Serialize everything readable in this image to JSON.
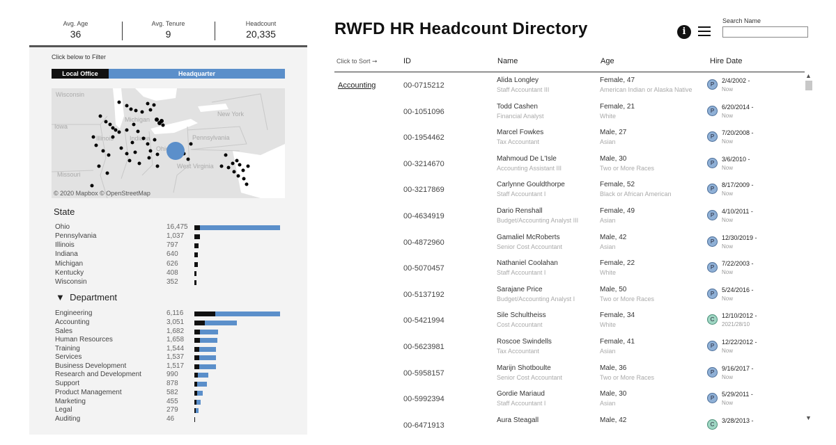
{
  "kpis": [
    {
      "label": "Avg. Age",
      "value": "36"
    },
    {
      "label": "Avg. Tenure",
      "value": "9"
    },
    {
      "label": "Headcount",
      "value": "20,335"
    }
  ],
  "filter_hint": "Click below  to Filter",
  "office_toggle": {
    "local": "Local Office",
    "hq": "Headquarter"
  },
  "map": {
    "credit": "© 2020 Mapbox  © OpenStreetMap",
    "labels": [
      "Wisconsin",
      "Michigan",
      "Iowa",
      "Illinois",
      "Indiana",
      "Ohio",
      "Pennsylvania",
      "New York",
      "West Virginia",
      "Missouri"
    ]
  },
  "state": {
    "title": "State",
    "max": 16475,
    "items": [
      {
        "name": "Ohio",
        "value": "16,475",
        "n": 16475,
        "local": 0.06
      },
      {
        "name": "Pennsylvania",
        "value": "1,037",
        "n": 1037,
        "local": 1
      },
      {
        "name": "Illinois",
        "value": "797",
        "n": 797,
        "local": 1
      },
      {
        "name": "Indiana",
        "value": "640",
        "n": 640,
        "local": 1
      },
      {
        "name": "Michigan",
        "value": "626",
        "n": 626,
        "local": 1
      },
      {
        "name": "Kentucky",
        "value": "408",
        "n": 408,
        "local": 1
      },
      {
        "name": "Wisconsin",
        "value": "352",
        "n": 352,
        "local": 1
      }
    ]
  },
  "department": {
    "title": "Department",
    "arrow": "▼",
    "max": 6116,
    "items": [
      {
        "name": "Engineering",
        "value": "6,116",
        "n": 6116,
        "local": 0.24
      },
      {
        "name": "Accounting",
        "value": "3,051",
        "n": 3051,
        "local": 0.24
      },
      {
        "name": "Sales",
        "value": "1,682",
        "n": 1682,
        "local": 0.24
      },
      {
        "name": "Human Resources",
        "value": "1,658",
        "n": 1658,
        "local": 0.24
      },
      {
        "name": "Training",
        "value": "1,544",
        "n": 1544,
        "local": 0.24
      },
      {
        "name": "Services",
        "value": "1,537",
        "n": 1537,
        "local": 0.24
      },
      {
        "name": "Business Development",
        "value": "1,517",
        "n": 1517,
        "local": 0.24
      },
      {
        "name": "Research and Development",
        "value": "990",
        "n": 990,
        "local": 0.24
      },
      {
        "name": "Support",
        "value": "878",
        "n": 878,
        "local": 0.24
      },
      {
        "name": "Product Management",
        "value": "582",
        "n": 582,
        "local": 0.3
      },
      {
        "name": "Marketing",
        "value": "455",
        "n": 455,
        "local": 0.3
      },
      {
        "name": "Legal",
        "value": "279",
        "n": 279,
        "local": 0.3
      },
      {
        "name": "Auditing",
        "value": "46",
        "n": 46,
        "local": 0.3
      }
    ]
  },
  "header": {
    "title": "RWFD HR Headcount Directory",
    "info_symbol": "i",
    "search_label": "Search Name",
    "search_placeholder": ""
  },
  "table": {
    "columns": {
      "sort_hint": "Click to Sort ➞",
      "id": "ID",
      "name": "Name",
      "age": "Age",
      "hire_date": "Hire Date"
    },
    "department": "Accounting",
    "rows": [
      {
        "id": "00-0715212",
        "name": "Alida Longley",
        "title": "Staff Accountant III",
        "age": "Female, 47",
        "race": "American Indian or Alaska Native",
        "badge": "P",
        "hire": "2/4/2002 -",
        "end": "Now"
      },
      {
        "id": "00-1051096",
        "name": "Todd Cashen",
        "title": "Financial Analyst",
        "age": "Female, 21",
        "race": "White",
        "badge": "P",
        "hire": "6/20/2014 -",
        "end": "Now"
      },
      {
        "id": "00-1954462",
        "name": "Marcel Fowkes",
        "title": "Tax Accountant",
        "age": "Male, 27",
        "race": "Asian",
        "badge": "P",
        "hire": "7/20/2008 -",
        "end": "Now"
      },
      {
        "id": "00-3214670",
        "name": "Mahmoud De L'Isle",
        "title": "Accounting Assistant III",
        "age": "Male, 30",
        "race": "Two or More Races",
        "badge": "P",
        "hire": "3/6/2010 -",
        "end": "Now"
      },
      {
        "id": "00-3217869",
        "name": "Carlynne Gouldthorpe",
        "title": "Staff Accountant I",
        "age": "Female, 52",
        "race": "Black or African American",
        "badge": "P",
        "hire": "8/17/2009 -",
        "end": "Now"
      },
      {
        "id": "00-4634919",
        "name": "Dario Renshall",
        "title": "Budget/Accounting Analyst III",
        "age": "Female, 49",
        "race": "Asian",
        "badge": "P",
        "hire": "4/10/2011 -",
        "end": "Now"
      },
      {
        "id": "00-4872960",
        "name": "Gamaliel McRoberts",
        "title": "Senior Cost Accountant",
        "age": "Male, 42",
        "race": "Asian",
        "badge": "P",
        "hire": "12/30/2019 -",
        "end": "Now"
      },
      {
        "id": "00-5070457",
        "name": "Nathaniel Coolahan",
        "title": "Staff Accountant I",
        "age": "Female, 22",
        "race": "White",
        "badge": "P",
        "hire": "7/22/2003 -",
        "end": "Now"
      },
      {
        "id": "00-5137192",
        "name": "Sarajane Price",
        "title": "Budget/Accounting Analyst I",
        "age": "Male, 50",
        "race": "Two or More Races",
        "badge": "P",
        "hire": "5/24/2016 -",
        "end": "Now"
      },
      {
        "id": "00-5421994",
        "name": "Sile Schultheiss",
        "title": "Cost Accountant",
        "age": "Female, 34",
        "race": "White",
        "badge": "C",
        "hire": "12/10/2012 -",
        "end": "2021/28/10"
      },
      {
        "id": "00-5623981",
        "name": "Roscoe Swindells",
        "title": "Tax Accountant",
        "age": "Female, 41",
        "race": "Asian",
        "badge": "P",
        "hire": "12/22/2012 -",
        "end": "Now"
      },
      {
        "id": "00-5958157",
        "name": "Marijn Shotboulte",
        "title": "Senior Cost Accountant",
        "age": "Male, 36",
        "race": "Two or More Races",
        "badge": "P",
        "hire": "9/16/2017 -",
        "end": "Now"
      },
      {
        "id": "00-5992394",
        "name": "Gordie Mariaud",
        "title": "Staff Accountant I",
        "age": "Male, 30",
        "race": "Asian",
        "badge": "P",
        "hire": "5/29/2011 -",
        "end": "Now"
      },
      {
        "id": "00-6471913",
        "name": "Aura Steagall",
        "title": "",
        "age": "Male, 42",
        "race": "",
        "badge": "C",
        "hire": "3/28/2013 -",
        "end": ""
      }
    ]
  },
  "colors": {
    "bar_blue": "#5b8fca",
    "bar_black": "#111111",
    "badge_blue": "#8fb0d6",
    "badge_green": "#9fd6c3"
  }
}
